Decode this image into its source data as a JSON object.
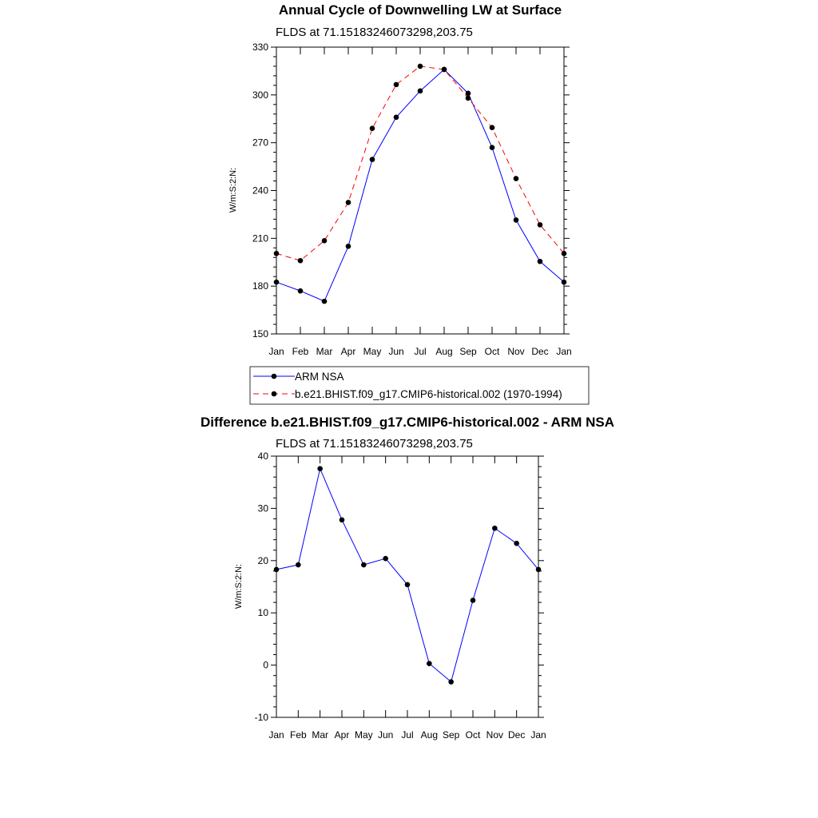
{
  "chart_data": [
    {
      "type": "line",
      "title": "Annual Cycle of Downwelling LW at Surface",
      "subtitle": "FLDS at 71.15183246073298,203.75",
      "xlabel": "",
      "ylabel": "W/m:S:2:N:",
      "categories": [
        "Jan",
        "Feb",
        "Mar",
        "Apr",
        "May",
        "Jun",
        "Jul",
        "Aug",
        "Sep",
        "Oct",
        "Nov",
        "Dec",
        "Jan"
      ],
      "ylim": [
        150,
        330
      ],
      "yticks": [
        150,
        180,
        210,
        240,
        270,
        300,
        330
      ],
      "grid": false,
      "legend_position": "bottom",
      "series": [
        {
          "name": "ARM NSA",
          "color": "#0000ff",
          "dash": "solid",
          "values": [
            182.5,
            177,
            170.5,
            205,
            259.5,
            286,
            302.5,
            316,
            301,
            267,
            221.5,
            195.5,
            182.5
          ]
        },
        {
          "name": "b.e21.BHIST.f09_g17.CMIP6-historical.002 (1970-1994)",
          "color": "#ff0000",
          "dash": "dashed",
          "values": [
            200.5,
            196,
            208.5,
            232.5,
            279,
            306.5,
            318,
            316,
            298,
            279.5,
            247.5,
            218.5,
            200.5
          ]
        }
      ]
    },
    {
      "type": "line",
      "title": "Difference b.e21.BHIST.f09_g17.CMIP6-historical.002 - ARM NSA",
      "subtitle": "FLDS at 71.15183246073298,203.75",
      "xlabel": "",
      "ylabel": "W/m:S:2:N:",
      "categories": [
        "Jan",
        "Feb",
        "Mar",
        "Apr",
        "May",
        "Jun",
        "Jul",
        "Aug",
        "Sep",
        "Oct",
        "Nov",
        "Dec",
        "Jan"
      ],
      "ylim": [
        -10,
        40
      ],
      "yticks": [
        -10,
        0,
        10,
        20,
        30,
        40
      ],
      "grid": false,
      "series": [
        {
          "color": "#0000ff",
          "dash": "solid",
          "values": [
            18.3,
            19.2,
            37.6,
            27.8,
            19.2,
            20.4,
            15.4,
            0.3,
            -3.2,
            12.4,
            26.2,
            23.3,
            18.3
          ]
        }
      ]
    }
  ]
}
